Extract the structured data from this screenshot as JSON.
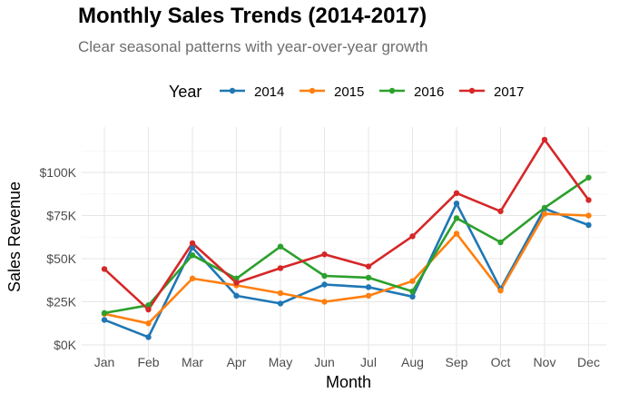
{
  "chart_data": {
    "type": "line",
    "title": "Monthly Sales Trends (2014-2017)",
    "subtitle": "Clear seasonal patterns with year-over-year growth",
    "xlabel": "Month",
    "ylabel": "Sales Revenue",
    "legend_title": "Year",
    "legend_position": "top",
    "grid": true,
    "categories": [
      "Jan",
      "Feb",
      "Mar",
      "Apr",
      "May",
      "Jun",
      "Jul",
      "Aug",
      "Sep",
      "Oct",
      "Nov",
      "Dec"
    ],
    "ylim": [
      0,
      120000
    ],
    "y_ticks": [
      0,
      25000,
      50000,
      75000,
      100000
    ],
    "y_tick_labels": [
      "$0K",
      "$25K",
      "$50K",
      "$75K",
      "$100K"
    ],
    "series": [
      {
        "name": "2014",
        "color": "#1f77b4",
        "values": [
          14500,
          4500,
          56500,
          28500,
          24000,
          35000,
          33500,
          28000,
          82000,
          32500,
          79000,
          69500
        ]
      },
      {
        "name": "2015",
        "color": "#ff7f0e",
        "values": [
          18000,
          12500,
          38500,
          34500,
          30000,
          25000,
          28500,
          37000,
          64500,
          31500,
          76000,
          75000
        ]
      },
      {
        "name": "2016",
        "color": "#2ca02c",
        "values": [
          18500,
          23000,
          52000,
          38500,
          57000,
          40000,
          39000,
          31000,
          73500,
          59500,
          79500,
          97000
        ]
      },
      {
        "name": "2017",
        "color": "#d62728",
        "values": [
          44000,
          20500,
          59000,
          36000,
          44500,
          52500,
          45500,
          63000,
          88000,
          77500,
          119000,
          84000
        ]
      }
    ]
  }
}
